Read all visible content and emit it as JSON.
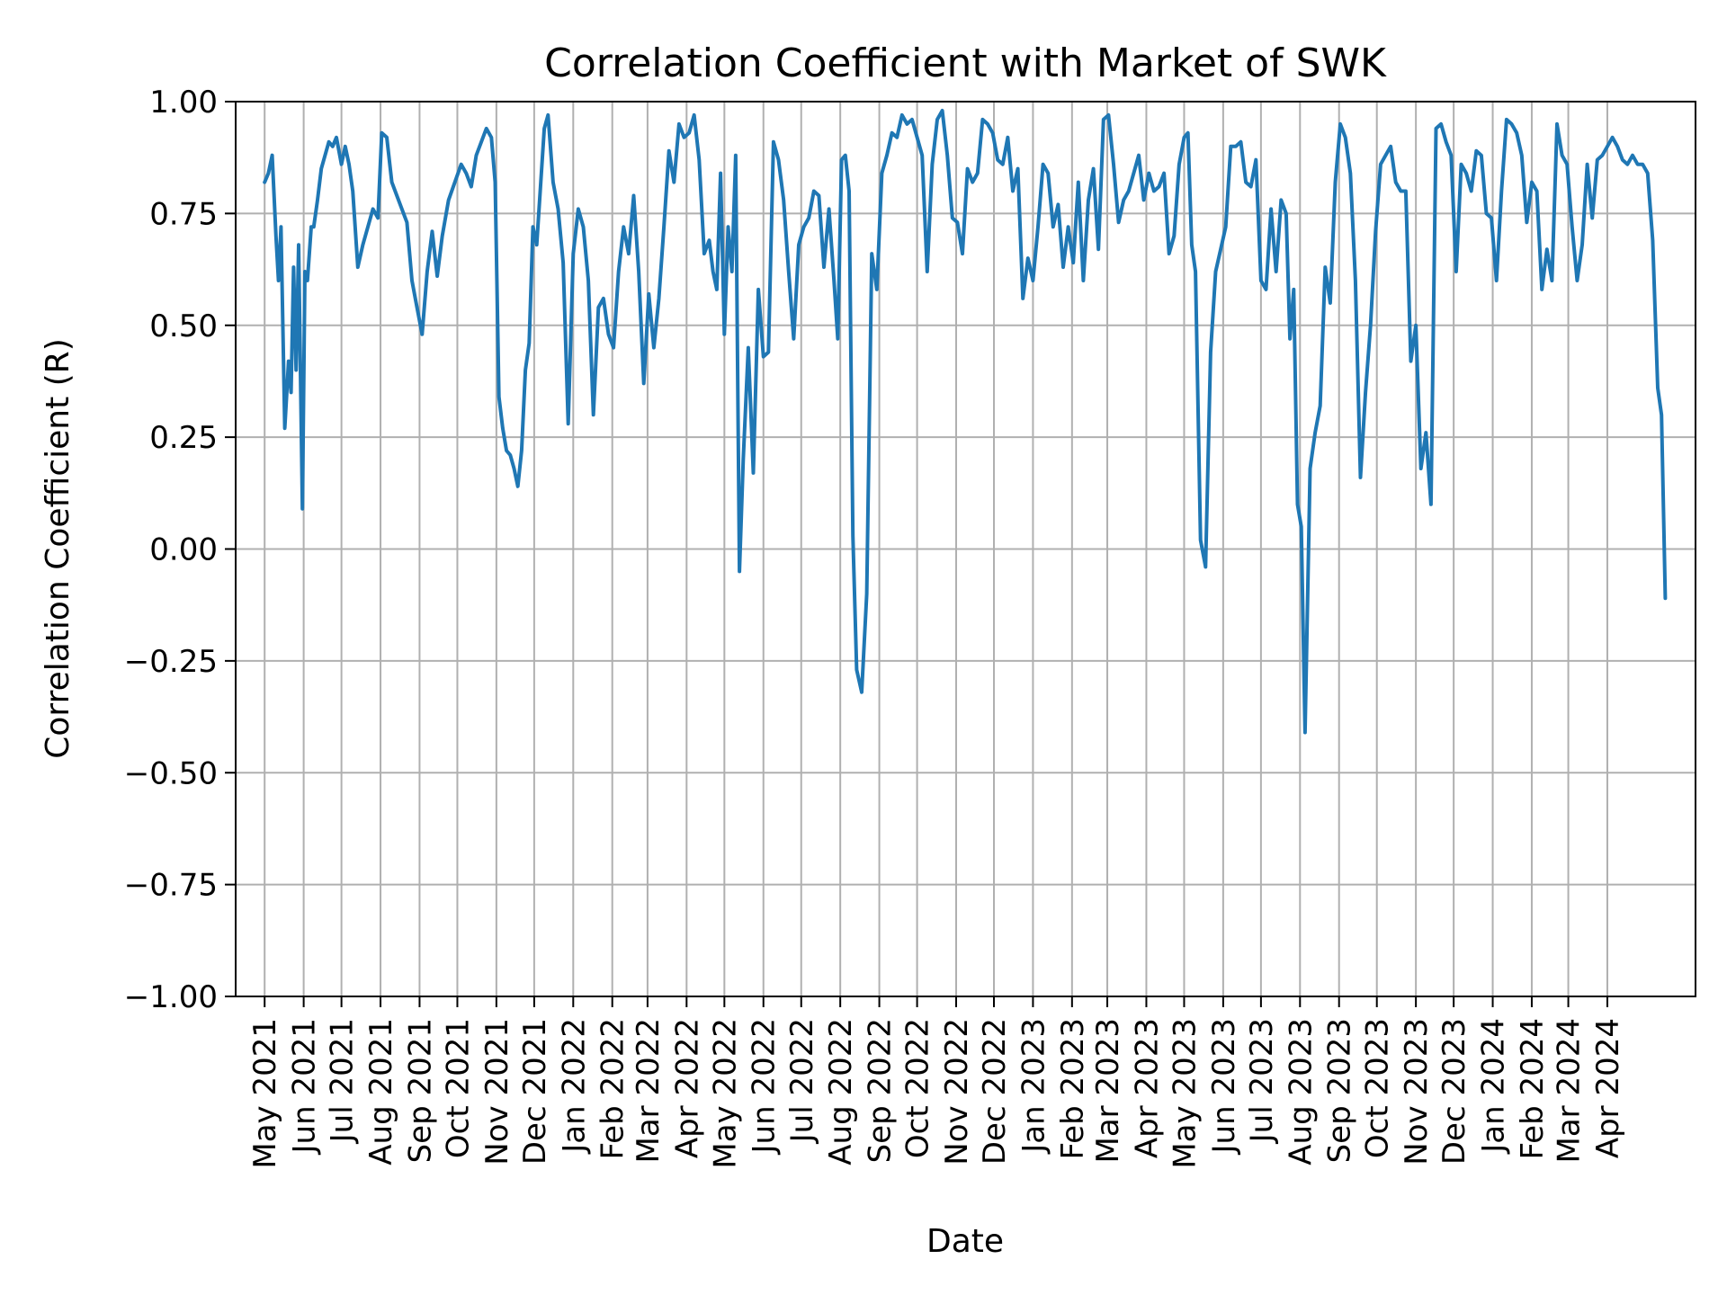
{
  "chart_data": {
    "type": "line",
    "title": "Correlation Coefficient with Market of SWK",
    "xlabel": "Date",
    "ylabel": "Correlation Coefficient (R)",
    "ylim": [
      -1.0,
      1.0
    ],
    "xlim": [
      "2021-04-08",
      "2024-06-10"
    ],
    "grid": true,
    "y_ticks": [
      -1.0,
      -0.75,
      -0.5,
      -0.25,
      0.0,
      0.25,
      0.5,
      0.75,
      1.0
    ],
    "y_tick_labels": [
      "−1.00",
      "−0.75",
      "−0.50",
      "−0.25",
      "0.00",
      "0.25",
      "0.50",
      "0.75",
      "1.00"
    ],
    "x_ticks": [
      {
        "date": "2021-05-01",
        "label": "May 2021"
      },
      {
        "date": "2021-06-01",
        "label": "Jun 2021"
      },
      {
        "date": "2021-07-01",
        "label": "Jul 2021"
      },
      {
        "date": "2021-08-01",
        "label": "Aug 2021"
      },
      {
        "date": "2021-09-01",
        "label": "Sep 2021"
      },
      {
        "date": "2021-10-01",
        "label": "Oct 2021"
      },
      {
        "date": "2021-11-01",
        "label": "Nov 2021"
      },
      {
        "date": "2021-12-01",
        "label": "Dec 2021"
      },
      {
        "date": "2022-01-01",
        "label": "Jan 2022"
      },
      {
        "date": "2022-02-01",
        "label": "Feb 2022"
      },
      {
        "date": "2022-03-01",
        "label": "Mar 2022"
      },
      {
        "date": "2022-04-01",
        "label": "Apr 2022"
      },
      {
        "date": "2022-05-01",
        "label": "May 2022"
      },
      {
        "date": "2022-06-01",
        "label": "Jun 2022"
      },
      {
        "date": "2022-07-01",
        "label": "Jul 2022"
      },
      {
        "date": "2022-08-01",
        "label": "Aug 2022"
      },
      {
        "date": "2022-09-01",
        "label": "Sep 2022"
      },
      {
        "date": "2022-10-01",
        "label": "Oct 2022"
      },
      {
        "date": "2022-11-01",
        "label": "Nov 2022"
      },
      {
        "date": "2022-12-01",
        "label": "Dec 2022"
      },
      {
        "date": "2023-01-01",
        "label": "Jan 2023"
      },
      {
        "date": "2023-02-01",
        "label": "Feb 2023"
      },
      {
        "date": "2023-03-01",
        "label": "Mar 2023"
      },
      {
        "date": "2023-04-01",
        "label": "Apr 2023"
      },
      {
        "date": "2023-05-01",
        "label": "May 2023"
      },
      {
        "date": "2023-06-01",
        "label": "Jun 2023"
      },
      {
        "date": "2023-07-01",
        "label": "Jul 2023"
      },
      {
        "date": "2023-08-01",
        "label": "Aug 2023"
      },
      {
        "date": "2023-09-01",
        "label": "Sep 2023"
      },
      {
        "date": "2023-10-01",
        "label": "Oct 2023"
      },
      {
        "date": "2023-11-01",
        "label": "Nov 2023"
      },
      {
        "date": "2023-12-01",
        "label": "Dec 2023"
      },
      {
        "date": "2024-01-01",
        "label": "Jan 2024"
      },
      {
        "date": "2024-02-01",
        "label": "Feb 2024"
      },
      {
        "date": "2024-03-01",
        "label": "Mar 2024"
      },
      {
        "date": "2024-04-01",
        "label": "Apr 2024"
      }
    ],
    "line_color": "#1f77b4",
    "grid_color": "#b0b0b0",
    "series": [
      {
        "x": [
          "2021-05-01",
          "2021-05-04",
          "2021-05-07",
          "2021-05-10",
          "2021-05-12",
          "2021-05-14",
          "2021-05-17",
          "2021-05-20",
          "2021-05-22",
          "2021-05-24",
          "2021-05-26",
          "2021-05-28",
          "2021-05-31",
          "2021-06-02",
          "2021-06-04",
          "2021-06-07",
          "2021-06-09",
          "2021-06-12",
          "2021-06-15",
          "2021-06-18",
          "2021-06-21",
          "2021-06-24",
          "2021-06-27",
          "2021-07-01",
          "2021-07-04",
          "2021-07-07",
          "2021-07-10",
          "2021-07-14",
          "2021-07-18",
          "2021-07-22",
          "2021-07-26",
          "2021-07-30",
          "2021-08-02",
          "2021-08-06",
          "2021-08-10",
          "2021-08-14",
          "2021-08-18",
          "2021-08-22",
          "2021-08-26",
          "2021-08-30",
          "2021-09-03",
          "2021-09-07",
          "2021-09-11",
          "2021-09-15",
          "2021-09-19",
          "2021-09-24",
          "2021-09-29",
          "2021-10-04",
          "2021-10-08",
          "2021-10-12",
          "2021-10-16",
          "2021-10-20",
          "2021-10-24",
          "2021-10-28",
          "2021-10-31",
          "2021-11-03",
          "2021-11-06",
          "2021-11-09",
          "2021-11-12",
          "2021-11-15",
          "2021-11-18",
          "2021-11-21",
          "2021-11-24",
          "2021-11-27",
          "2021-11-30",
          "2021-12-03",
          "2021-12-06",
          "2021-12-09",
          "2021-12-12",
          "2021-12-16",
          "2021-12-20",
          "2021-12-24",
          "2021-12-28",
          "2022-01-01",
          "2022-01-05",
          "2022-01-09",
          "2022-01-13",
          "2022-01-17",
          "2022-01-21",
          "2022-01-25",
          "2022-01-29",
          "2022-02-02",
          "2022-02-06",
          "2022-02-10",
          "2022-02-14",
          "2022-02-18",
          "2022-02-22",
          "2022-02-26",
          "2022-03-02",
          "2022-03-06",
          "2022-03-10",
          "2022-03-14",
          "2022-03-18",
          "2022-03-22",
          "2022-03-26",
          "2022-03-30",
          "2022-04-03",
          "2022-04-07",
          "2022-04-11",
          "2022-04-15",
          "2022-04-19",
          "2022-04-22",
          "2022-04-25",
          "2022-04-28",
          "2022-05-01",
          "2022-05-04",
          "2022-05-07",
          "2022-05-10",
          "2022-05-13",
          "2022-05-16",
          "2022-05-20",
          "2022-05-24",
          "2022-05-28",
          "2022-06-01",
          "2022-06-05",
          "2022-06-09",
          "2022-06-13",
          "2022-06-17",
          "2022-06-21",
          "2022-06-25",
          "2022-06-29",
          "2022-07-03",
          "2022-07-07",
          "2022-07-11",
          "2022-07-15",
          "2022-07-19",
          "2022-07-23",
          "2022-07-27",
          "2022-07-30",
          "2022-08-02",
          "2022-08-05",
          "2022-08-08",
          "2022-08-11",
          "2022-08-14",
          "2022-08-18",
          "2022-08-22",
          "2022-08-26",
          "2022-08-30",
          "2022-09-03",
          "2022-09-07",
          "2022-09-11",
          "2022-09-15",
          "2022-09-19",
          "2022-09-23",
          "2022-09-27",
          "2022-10-01",
          "2022-10-05",
          "2022-10-09",
          "2022-10-13",
          "2022-10-17",
          "2022-10-21",
          "2022-10-25",
          "2022-10-29",
          "2022-11-02",
          "2022-11-06",
          "2022-11-10",
          "2022-11-14",
          "2022-11-18",
          "2022-11-22",
          "2022-11-26",
          "2022-11-30",
          "2022-12-04",
          "2022-12-08",
          "2022-12-12",
          "2022-12-16",
          "2022-12-20",
          "2022-12-24",
          "2022-12-28",
          "2023-01-01",
          "2023-01-05",
          "2023-01-09",
          "2023-01-13",
          "2023-01-17",
          "2023-01-21",
          "2023-01-25",
          "2023-01-29",
          "2023-02-02",
          "2023-02-06",
          "2023-02-10",
          "2023-02-14",
          "2023-02-18",
          "2023-02-22",
          "2023-02-26",
          "2023-03-02",
          "2023-03-06",
          "2023-03-10",
          "2023-03-14",
          "2023-03-18",
          "2023-03-22",
          "2023-03-26",
          "2023-03-30",
          "2023-04-03",
          "2023-04-07",
          "2023-04-11",
          "2023-04-15",
          "2023-04-19",
          "2023-04-23",
          "2023-04-27",
          "2023-05-01",
          "2023-05-04",
          "2023-05-07",
          "2023-05-10",
          "2023-05-14",
          "2023-05-18",
          "2023-05-22",
          "2023-05-26",
          "2023-05-30",
          "2023-06-03",
          "2023-06-07",
          "2023-06-11",
          "2023-06-15",
          "2023-06-19",
          "2023-06-23",
          "2023-06-27",
          "2023-07-01",
          "2023-07-05",
          "2023-07-09",
          "2023-07-13",
          "2023-07-17",
          "2023-07-21",
          "2023-07-24",
          "2023-07-27",
          "2023-07-30",
          "2023-08-02",
          "2023-08-05",
          "2023-08-09",
          "2023-08-13",
          "2023-08-17",
          "2023-08-21",
          "2023-08-25",
          "2023-08-29",
          "2023-09-02",
          "2023-09-06",
          "2023-09-10",
          "2023-09-14",
          "2023-09-18",
          "2023-09-22",
          "2023-09-26",
          "2023-09-30",
          "2023-10-04",
          "2023-10-08",
          "2023-10-12",
          "2023-10-16",
          "2023-10-20",
          "2023-10-24",
          "2023-10-28",
          "2023-11-01",
          "2023-11-05",
          "2023-11-09",
          "2023-11-13",
          "2023-11-17",
          "2023-11-21",
          "2023-11-25",
          "2023-11-29",
          "2023-12-03",
          "2023-12-07",
          "2023-12-11",
          "2023-12-15",
          "2023-12-19",
          "2023-12-23",
          "2023-12-27",
          "2023-12-31",
          "2024-01-04",
          "2024-01-08",
          "2024-01-12",
          "2024-01-16",
          "2024-01-20",
          "2024-01-24",
          "2024-01-28",
          "2024-02-01",
          "2024-02-05",
          "2024-02-09",
          "2024-02-13",
          "2024-02-17",
          "2024-02-21",
          "2024-02-25",
          "2024-02-29",
          "2024-03-04",
          "2024-03-08",
          "2024-03-12",
          "2024-03-16",
          "2024-03-20",
          "2024-03-24",
          "2024-03-28",
          "2024-04-01",
          "2024-04-05",
          "2024-04-09",
          "2024-04-13",
          "2024-04-17",
          "2024-04-21",
          "2024-04-25",
          "2024-04-29",
          "2024-05-03",
          "2024-05-07",
          "2024-05-11",
          "2024-05-14",
          "2024-05-17"
        ],
        "y": [
          0.82,
          0.84,
          0.88,
          0.7,
          0.6,
          0.72,
          0.27,
          0.42,
          0.35,
          0.63,
          0.4,
          0.68,
          0.09,
          0.62,
          0.6,
          0.72,
          0.72,
          0.78,
          0.85,
          0.88,
          0.91,
          0.9,
          0.92,
          0.86,
          0.9,
          0.86,
          0.8,
          0.63,
          0.68,
          0.72,
          0.76,
          0.74,
          0.93,
          0.92,
          0.82,
          0.79,
          0.76,
          0.73,
          0.6,
          0.54,
          0.48,
          0.62,
          0.71,
          0.61,
          0.7,
          0.78,
          0.82,
          0.86,
          0.84,
          0.81,
          0.88,
          0.91,
          0.94,
          0.92,
          0.82,
          0.34,
          0.27,
          0.22,
          0.21,
          0.18,
          0.14,
          0.22,
          0.4,
          0.46,
          0.72,
          0.68,
          0.81,
          0.94,
          0.97,
          0.82,
          0.76,
          0.64,
          0.28,
          0.66,
          0.76,
          0.72,
          0.6,
          0.3,
          0.54,
          0.56,
          0.48,
          0.45,
          0.62,
          0.72,
          0.66,
          0.79,
          0.62,
          0.37,
          0.57,
          0.45,
          0.56,
          0.72,
          0.89,
          0.82,
          0.95,
          0.92,
          0.93,
          0.97,
          0.87,
          0.66,
          0.69,
          0.62,
          0.58,
          0.84,
          0.48,
          0.72,
          0.62,
          0.88,
          -0.05,
          0.2,
          0.45,
          0.17,
          0.58,
          0.43,
          0.44,
          0.91,
          0.87,
          0.78,
          0.62,
          0.47,
          0.68,
          0.72,
          0.74,
          0.8,
          0.79,
          0.63,
          0.76,
          0.6,
          0.47,
          0.87,
          0.88,
          0.8,
          0.03,
          -0.27,
          -0.32,
          -0.1,
          0.66,
          0.58,
          0.84,
          0.88,
          0.93,
          0.92,
          0.97,
          0.95,
          0.96,
          0.92,
          0.88,
          0.62,
          0.86,
          0.96,
          0.98,
          0.88,
          0.74,
          0.73,
          0.66,
          0.85,
          0.82,
          0.84,
          0.96,
          0.95,
          0.93,
          0.87,
          0.86,
          0.92,
          0.8,
          0.85,
          0.56,
          0.65,
          0.6,
          0.72,
          0.86,
          0.84,
          0.72,
          0.77,
          0.63,
          0.72,
          0.64,
          0.82,
          0.6,
          0.78,
          0.85,
          0.67,
          0.96,
          0.97,
          0.86,
          0.73,
          0.78,
          0.8,
          0.84,
          0.88,
          0.78,
          0.84,
          0.8,
          0.81,
          0.84,
          0.66,
          0.7,
          0.86,
          0.92,
          0.93,
          0.68,
          0.62,
          0.02,
          -0.04,
          0.44,
          0.62,
          0.67,
          0.72,
          0.9,
          0.9,
          0.91,
          0.82,
          0.81,
          0.87,
          0.6,
          0.58,
          0.76,
          0.62,
          0.78,
          0.75,
          0.47,
          0.58,
          0.1,
          0.05,
          -0.41,
          0.18,
          0.26,
          0.32,
          0.63,
          0.55,
          0.82,
          0.95,
          0.92,
          0.84,
          0.6,
          0.16,
          0.35,
          0.5,
          0.71,
          0.86,
          0.88,
          0.9,
          0.82,
          0.8,
          0.8,
          0.42,
          0.5,
          0.18,
          0.26,
          0.1,
          0.94,
          0.95,
          0.91,
          0.88,
          0.62,
          0.86,
          0.84,
          0.8,
          0.89,
          0.88,
          0.75,
          0.74,
          0.6,
          0.8,
          0.96,
          0.95,
          0.93,
          0.88,
          0.73,
          0.82,
          0.8,
          0.58,
          0.67,
          0.6,
          0.95,
          0.88,
          0.86,
          0.72,
          0.6,
          0.68,
          0.86,
          0.74,
          0.87,
          0.88,
          0.9,
          0.92,
          0.9,
          0.87,
          0.86,
          0.88,
          0.86,
          0.86,
          0.84,
          0.69,
          0.36,
          0.3,
          -0.11
        ]
      }
    ]
  }
}
